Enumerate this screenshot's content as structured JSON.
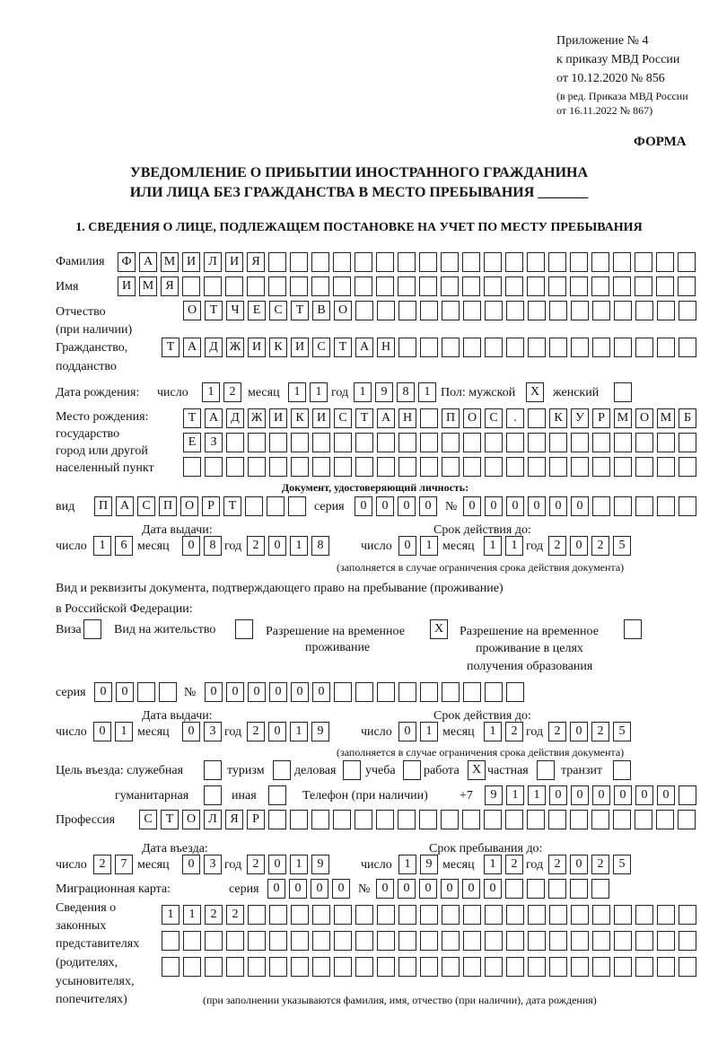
{
  "header": {
    "appendix": "Приложение № 4",
    "order": "к приказу МВД России",
    "order_date": "от 10.12.2020 № 856",
    "edition": "(в ред. Приказа МВД России",
    "edition_date": "от 16.11.2022 № 867)",
    "form": "ФОРМА",
    "title_1": "УВЕДОМЛЕНИЕ О ПРИБЫТИИ ИНОСТРАННОГО ГРАЖДАНИНА",
    "title_2": "ИЛИ ЛИЦА БЕЗ ГРАЖДАНСТВА В МЕСТО ПРЕБЫВАНИЯ _______",
    "section": "1. СВЕДЕНИЯ О ЛИЦЕ, ПОДЛЕЖАЩЕМ ПОСТАНОВКЕ НА УЧЕТ ПО МЕСТУ ПРЕБЫВАНИЯ"
  },
  "labels": {
    "surname": "Фамилия",
    "name": "Имя",
    "patronymic": "Отчество",
    "patronymic_note": "(при наличии)",
    "citizenship": "Гражданство,",
    "citizenship_2": "подданство",
    "birth_date": "Дата рождения:",
    "day": "число",
    "month": "месяц",
    "year": "год",
    "sex": "Пол: мужской",
    "female": "женский",
    "birth_place": "Место рождения:",
    "birth_place_2": "государство",
    "birth_place_3": "город или другой",
    "birth_place_4": "населенный пункт",
    "id_doc": "Документ, удостоверяющий личность:",
    "kind": "вид",
    "series": "серия",
    "number": "№",
    "issue_date": "Дата выдачи:",
    "valid_until": "Срок действия до:",
    "valid_note": "(заполняется в случае ограничения срока действия документа)",
    "stay_doc_1": "Вид и реквизиты документа, подтверждающего право на пребывание (проживание)",
    "stay_doc_2": "в Российской Федерации:",
    "visa": "Виза",
    "residence": "Вид на жительство",
    "trp_1": "Разрешение на временное",
    "trp_2": "проживание",
    "trp_edu_1": "Разрешение на временное",
    "trp_edu_2": "проживание в целях",
    "trp_edu_3": "получения образования",
    "purpose": "Цель въезда: служебная",
    "tourism": "туризм",
    "business": "деловая",
    "study": "учеба",
    "work": "работа",
    "private": "частная",
    "transit": "транзит",
    "humanitarian": "гуманитарная",
    "other": "иная",
    "phone": "Телефон (при наличии)",
    "phone_prefix": "+7",
    "profession": "Профессия",
    "entry_date": "Дата въезда:",
    "stay_until": "Срок пребывания до:",
    "migration_card": "Миграционная карта:",
    "reps_1": "Сведения о",
    "reps_2": "законных",
    "reps_3": "представителях",
    "reps_4": "(родителях,",
    "reps_5": "усыновителях,",
    "reps_6": "попечителях)",
    "reps_note": "(при заполнении указываются фамилия, имя, отчество (при наличии), дата рождения)"
  },
  "cells": {
    "surname": [
      "Ф",
      "А",
      "М",
      "И",
      "Л",
      "И",
      "Я",
      "",
      "",
      "",
      "",
      "",
      "",
      "",
      "",
      "",
      "",
      "",
      "",
      "",
      "",
      "",
      "",
      "",
      "",
      "",
      ""
    ],
    "name": [
      "И",
      "М",
      "Я",
      "",
      "",
      "",
      "",
      "",
      "",
      "",
      "",
      "",
      "",
      "",
      "",
      "",
      "",
      "",
      "",
      "",
      "",
      "",
      "",
      "",
      "",
      "",
      ""
    ],
    "patronymic": [
      "О",
      "Т",
      "Ч",
      "Е",
      "С",
      "Т",
      "В",
      "О",
      "",
      "",
      "",
      "",
      "",
      "",
      "",
      "",
      "",
      "",
      "",
      "",
      "",
      "",
      "",
      ""
    ],
    "citizenship": [
      "Т",
      "А",
      "Д",
      "Ж",
      "И",
      "К",
      "И",
      "С",
      "Т",
      "А",
      "Н",
      "",
      "",
      "",
      "",
      "",
      "",
      "",
      "",
      "",
      "",
      "",
      "",
      "",
      ""
    ],
    "birth_day": [
      "1",
      "2"
    ],
    "birth_month": [
      "1",
      "1"
    ],
    "birth_year": [
      "1",
      "9",
      "8",
      "1"
    ],
    "sex_male": [
      "X"
    ],
    "sex_female": [
      ""
    ],
    "birth_place_1": [
      "Т",
      "А",
      "Д",
      "Ж",
      "И",
      "К",
      "И",
      "С",
      "Т",
      "А",
      "Н",
      "",
      "П",
      "О",
      "С",
      ".",
      "",
      "К",
      "У",
      "Р",
      "М",
      "О",
      "М",
      "Б"
    ],
    "birth_place_2": [
      "Е",
      "З",
      "",
      "",
      "",
      "",
      "",
      "",
      "",
      "",
      "",
      "",
      "",
      "",
      "",
      "",
      "",
      "",
      "",
      "",
      "",
      "",
      "",
      ""
    ],
    "birth_place_3": [
      "",
      "",
      "",
      "",
      "",
      "",
      "",
      "",
      "",
      "",
      "",
      "",
      "",
      "",
      "",
      "",
      "",
      "",
      "",
      "",
      "",
      "",
      "",
      ""
    ],
    "id_kind": [
      "П",
      "А",
      "С",
      "П",
      "О",
      "Р",
      "Т",
      "",
      "",
      ""
    ],
    "id_series": [
      "0",
      "0",
      "0",
      "0"
    ],
    "id_number": [
      "0",
      "0",
      "0",
      "0",
      "0",
      "0",
      "",
      "",
      "",
      "",
      ""
    ],
    "id_issue_day": [
      "1",
      "6"
    ],
    "id_issue_month": [
      "0",
      "8"
    ],
    "id_issue_year": [
      "2",
      "0",
      "1",
      "8"
    ],
    "id_valid_day": [
      "0",
      "1"
    ],
    "id_valid_month": [
      "1",
      "1"
    ],
    "id_valid_year": [
      "2",
      "0",
      "2",
      "5"
    ],
    "visa": [
      ""
    ],
    "residence": [
      ""
    ],
    "trp": [
      "X"
    ],
    "trp_edu": [
      ""
    ],
    "stay_series": [
      "0",
      "0",
      "",
      ""
    ],
    "stay_number": [
      "0",
      "0",
      "0",
      "0",
      "0",
      "0",
      "",
      "",
      "",
      "",
      "",
      "",
      "",
      "",
      ""
    ],
    "stay_issue_day": [
      "0",
      "1"
    ],
    "stay_issue_month": [
      "0",
      "3"
    ],
    "stay_issue_year": [
      "2",
      "0",
      "1",
      "9"
    ],
    "stay_valid_day": [
      "0",
      "1"
    ],
    "stay_valid_month": [
      "1",
      "2"
    ],
    "stay_valid_year": [
      "2",
      "0",
      "2",
      "5"
    ],
    "p_official": [
      ""
    ],
    "p_tourism": [
      ""
    ],
    "p_business": [
      ""
    ],
    "p_study": [
      ""
    ],
    "p_work": [
      "X"
    ],
    "p_private": [
      ""
    ],
    "p_transit": [
      ""
    ],
    "p_humanitarian": [
      ""
    ],
    "p_other": [
      ""
    ],
    "phone": [
      "9",
      "1",
      "1",
      "0",
      "0",
      "0",
      "0",
      "0",
      "0",
      ""
    ],
    "profession": [
      "С",
      "Т",
      "О",
      "Л",
      "Я",
      "Р",
      "",
      "",
      "",
      "",
      "",
      "",
      "",
      "",
      "",
      "",
      "",
      "",
      "",
      "",
      "",
      "",
      "",
      "",
      "",
      ""
    ],
    "entry_day": [
      "2",
      "7"
    ],
    "entry_month": [
      "0",
      "3"
    ],
    "entry_year": [
      "2",
      "0",
      "1",
      "9"
    ],
    "until_day": [
      "1",
      "9"
    ],
    "until_month": [
      "1",
      "2"
    ],
    "until_year": [
      "2",
      "0",
      "2",
      "5"
    ],
    "mc_series": [
      "0",
      "0",
      "0",
      "0"
    ],
    "mc_number": [
      "0",
      "0",
      "0",
      "0",
      "0",
      "0",
      "",
      "",
      "",
      "",
      ""
    ],
    "reps_1": [
      "1",
      "1",
      "2",
      "2",
      "",
      "",
      "",
      "",
      "",
      "",
      "",
      "",
      "",
      "",
      "",
      "",
      "",
      "",
      "",
      "",
      "",
      "",
      "",
      "",
      ""
    ],
    "reps_2": [
      "",
      "",
      "",
      "",
      "",
      "",
      "",
      "",
      "",
      "",
      "",
      "",
      "",
      "",
      "",
      "",
      "",
      "",
      "",
      "",
      "",
      "",
      "",
      "",
      ""
    ],
    "reps_3": [
      "",
      "",
      "",
      "",
      "",
      "",
      "",
      "",
      "",
      "",
      "",
      "",
      "",
      "",
      "",
      "",
      "",
      "",
      "",
      "",
      "",
      "",
      "",
      "",
      ""
    ]
  }
}
